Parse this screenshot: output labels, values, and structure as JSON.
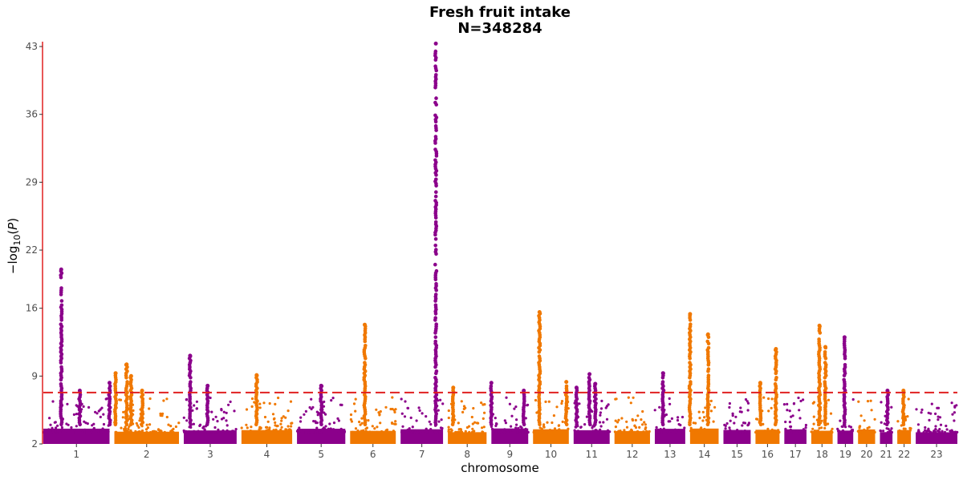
{
  "chart_data": {
    "type": "scatter",
    "subtype": "manhattan",
    "title": "Fresh fruit intake",
    "subtitle": "N=348284",
    "xlabel": "chromosome",
    "ylabel": "−log10(P)",
    "ylim": [
      2,
      43.5
    ],
    "y_ticks": [
      2,
      9,
      16,
      22,
      29,
      36,
      43
    ],
    "threshold": 7.3,
    "grid": false,
    "colors": {
      "odd": "#8B008B",
      "even": "#F07800",
      "threshold": "#E02020",
      "axis": "#E02020"
    },
    "chromosomes": [
      {
        "label": "1",
        "color": "odd"
      },
      {
        "label": "2",
        "color": "even"
      },
      {
        "label": "3",
        "color": "odd"
      },
      {
        "label": "4",
        "color": "even"
      },
      {
        "label": "5",
        "color": "odd"
      },
      {
        "label": "6",
        "color": "even"
      },
      {
        "label": "7",
        "color": "odd"
      },
      {
        "label": "8",
        "color": "even"
      },
      {
        "label": "9",
        "color": "odd"
      },
      {
        "label": "10",
        "color": "even"
      },
      {
        "label": "11",
        "color": "odd"
      },
      {
        "label": "12",
        "color": "even"
      },
      {
        "label": "13",
        "color": "odd"
      },
      {
        "label": "14",
        "color": "even"
      },
      {
        "label": "15",
        "color": "odd"
      },
      {
        "label": "16",
        "color": "even"
      },
      {
        "label": "17",
        "color": "odd"
      },
      {
        "label": "18",
        "color": "even"
      },
      {
        "label": "19",
        "color": "odd"
      },
      {
        "label": "20",
        "color": "even"
      },
      {
        "label": "21",
        "color": "odd"
      },
      {
        "label": "22",
        "color": "even"
      },
      {
        "label": "23",
        "color": "odd"
      }
    ],
    "peaks": [
      {
        "chr": "1",
        "pos": 0.27,
        "top": 20.0
      },
      {
        "chr": "1",
        "pos": 0.55,
        "top": 7.5
      },
      {
        "chr": "1",
        "pos": 1.0,
        "top": 8.3
      },
      {
        "chr": "2",
        "pos": 0.02,
        "top": 9.3
      },
      {
        "chr": "2",
        "pos": 0.19,
        "top": 10.2
      },
      {
        "chr": "2",
        "pos": 0.26,
        "top": 9.0
      },
      {
        "chr": "2",
        "pos": 0.43,
        "top": 7.5
      },
      {
        "chr": "3",
        "pos": 0.12,
        "top": 11.1
      },
      {
        "chr": "3",
        "pos": 0.45,
        "top": 8.0
      },
      {
        "chr": "4",
        "pos": 0.3,
        "top": 9.1
      },
      {
        "chr": "5",
        "pos": 0.5,
        "top": 8.0
      },
      {
        "chr": "6",
        "pos": 0.32,
        "top": 14.3
      },
      {
        "chr": "7",
        "pos": 0.83,
        "top": 43.3
      },
      {
        "chr": "8",
        "pos": 0.14,
        "top": 7.8
      },
      {
        "chr": "9",
        "pos": 0.0,
        "top": 8.3
      },
      {
        "chr": "9",
        "pos": 0.88,
        "top": 7.5
      },
      {
        "chr": "10",
        "pos": 0.18,
        "top": 15.6
      },
      {
        "chr": "10",
        "pos": 0.93,
        "top": 8.4
      },
      {
        "chr": "11",
        "pos": 0.08,
        "top": 7.8
      },
      {
        "chr": "11",
        "pos": 0.44,
        "top": 9.2
      },
      {
        "chr": "11",
        "pos": 0.6,
        "top": 8.2
      },
      {
        "chr": "13",
        "pos": 0.27,
        "top": 9.3
      },
      {
        "chr": "14",
        "pos": 0.0,
        "top": 15.4
      },
      {
        "chr": "14",
        "pos": 0.63,
        "top": 13.3
      },
      {
        "chr": "16",
        "pos": 0.2,
        "top": 8.3
      },
      {
        "chr": "16",
        "pos": 0.85,
        "top": 11.8
      },
      {
        "chr": "18",
        "pos": 0.38,
        "top": 14.2
      },
      {
        "chr": "18",
        "pos": 0.66,
        "top": 12.0
      },
      {
        "chr": "19",
        "pos": 0.45,
        "top": 13.0
      },
      {
        "chr": "21",
        "pos": 0.6,
        "top": 7.5
      },
      {
        "chr": "22",
        "pos": 0.45,
        "top": 7.5
      }
    ]
  }
}
